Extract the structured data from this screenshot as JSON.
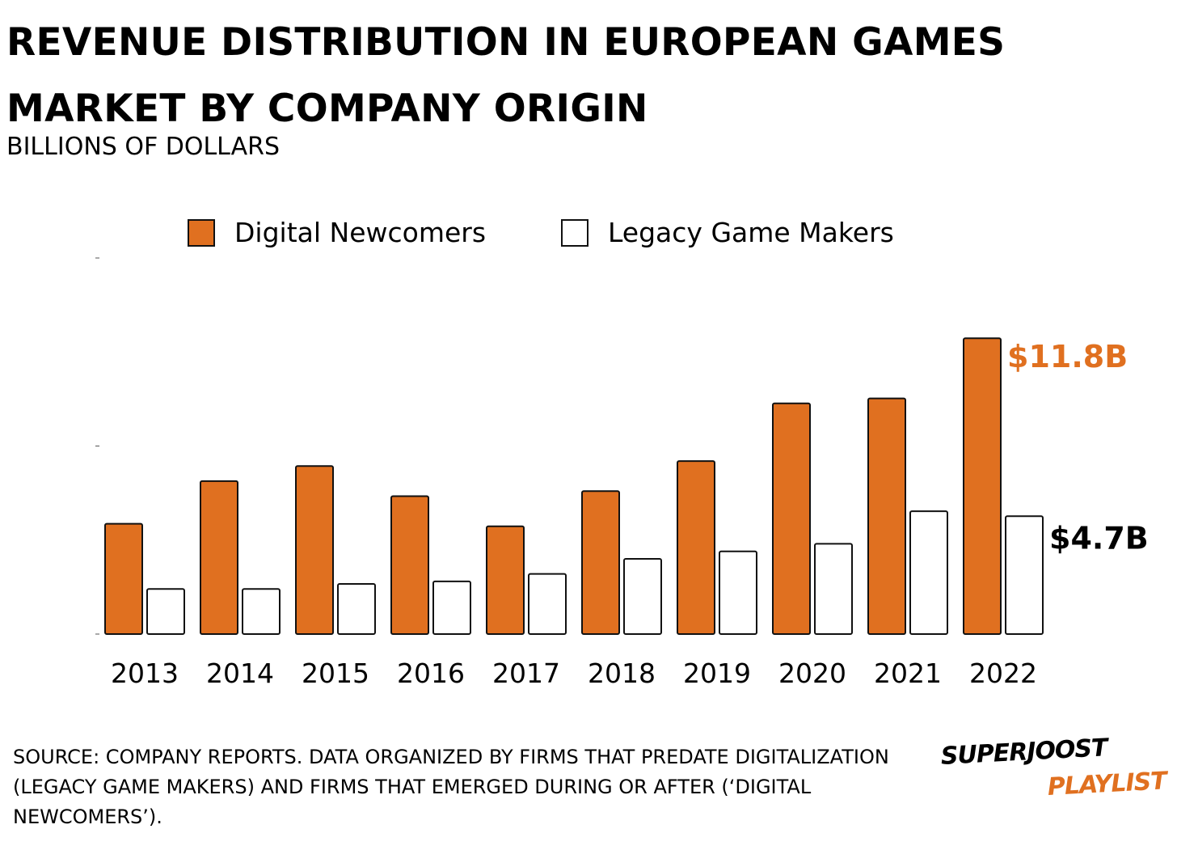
{
  "colors": {
    "digital": "#e07020",
    "legacy": "#ffffff",
    "stroke": "#111111",
    "accent_label": "#e07020"
  },
  "chart_data": {
    "type": "bar",
    "title": "REVENUE DISTRIBUTION IN EUROPEAN GAMES MARKET BY COMPANY ORIGIN",
    "subtitle": "BILLIONS OF DOLLARS",
    "categories": [
      "2013",
      "2014",
      "2015",
      "2016",
      "2017",
      "2018",
      "2019",
      "2020",
      "2021",
      "2022"
    ],
    "series": [
      {
        "name": "Digital Newcomers",
        "values": [
          4.4,
          6.1,
          6.7,
          5.5,
          4.3,
          5.7,
          6.9,
          9.2,
          9.4,
          11.8
        ]
      },
      {
        "name": "Legacy Game Makers",
        "values": [
          1.8,
          1.8,
          2.0,
          2.1,
          2.4,
          3.0,
          3.3,
          3.6,
          4.9,
          4.7
        ]
      }
    ],
    "ylim": [
      0,
      15
    ],
    "value_labels": [
      {
        "series": 0,
        "category": "2022",
        "text": "$11.8B"
      },
      {
        "series": 1,
        "category": "2022",
        "text": "$4.7B"
      }
    ],
    "legend_position": "top-center",
    "grid": false
  },
  "footnote": "SOURCE: COMPANY REPORTS. DATA ORGANIZED BY FIRMS THAT PREDATE DIGITALIZATION (LEGACY GAME MAKERS) AND FIRMS THAT EMERGED DURING OR AFTER (‘DIGITAL NEWCOMERS’).",
  "logo": {
    "line1": "SUPERJOOST",
    "line2": "PLAYLIST"
  }
}
